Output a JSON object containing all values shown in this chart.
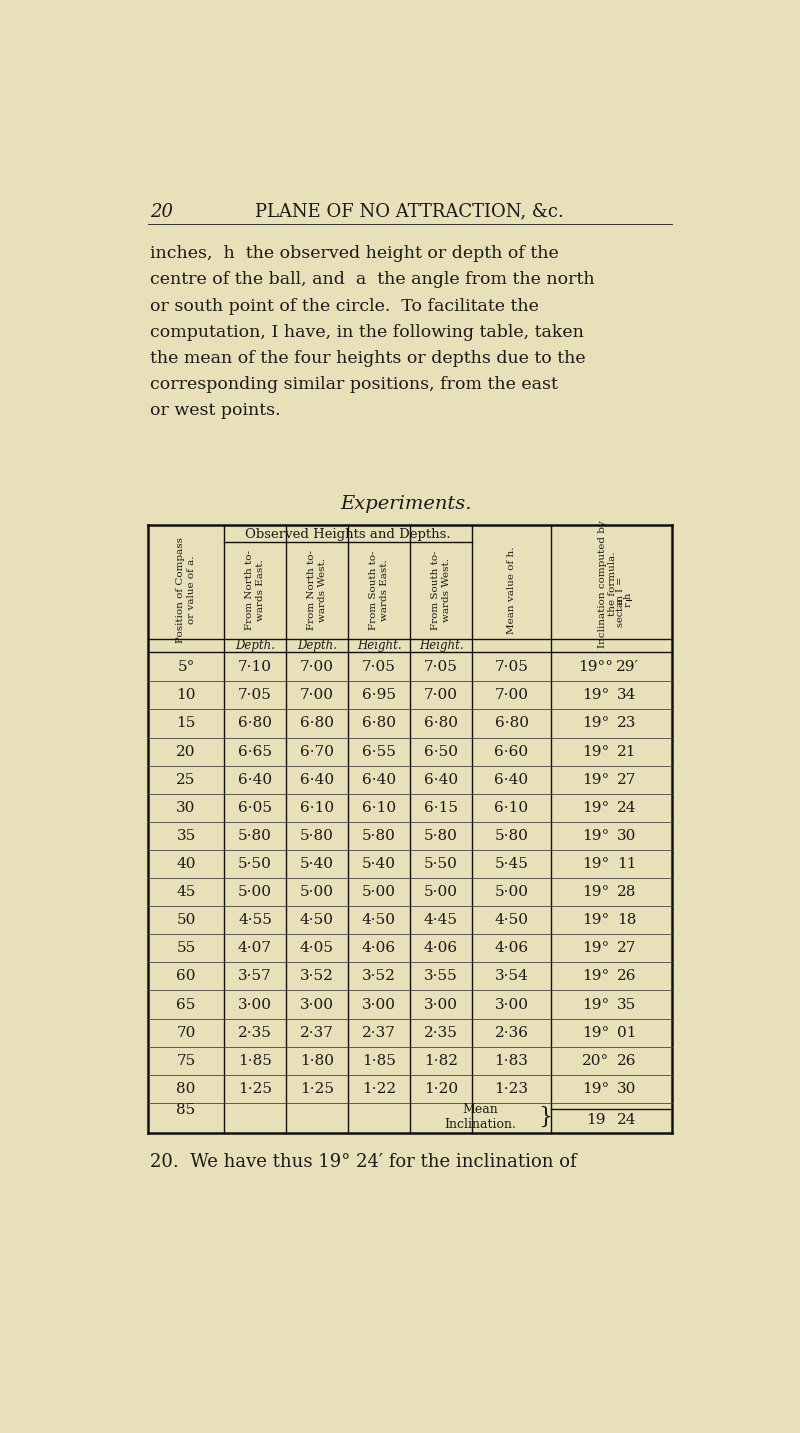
{
  "bg_color": "#e8e0b8",
  "page_num": "20",
  "page_header": "PLANE OF NO ATTRACTION, &c.",
  "para_lines": [
    "inches,  h  the observed height or depth of the",
    "centre of the ball, and  a  the angle from the north",
    "or south point of the circle.  To facilitate the",
    "computation, I have, in the following table, taken",
    "the mean of the four heights or depths due to the",
    "corresponding similar positions, from the east",
    "or west points."
  ],
  "table_title": "Experiments.",
  "col_header_span": "Observed Heights and Depths.",
  "col_headers_rotated": [
    "Position of Compass\nor value of a.",
    "From North to-\nwards East.",
    "From North to-\nwards West.",
    "From South to-\nwards East.",
    "From South to-\nwards West.",
    "Mean value of h.",
    "Inclination computed by\nthe formula."
  ],
  "subheads": [
    "Depth.",
    "Depth.",
    "Height.",
    "Height."
  ],
  "rows": [
    [
      "5°",
      "7·10",
      "7·00",
      "7·05",
      "7·05",
      "7·05",
      "19°",
      "29′"
    ],
    [
      "10",
      "7·05",
      "7·00",
      "6·95",
      "7·00",
      "7·00",
      "19",
      "34"
    ],
    [
      "15",
      "6·80",
      "6·80",
      "6·80",
      "6·80",
      "6·80",
      "19",
      "23"
    ],
    [
      "20",
      "6·65",
      "6·70",
      "6·55",
      "6·50",
      "6·60",
      "19",
      "21"
    ],
    [
      "25",
      "6·40",
      "6·40",
      "6·40",
      "6·40",
      "6·40",
      "19",
      "27"
    ],
    [
      "30",
      "6·05",
      "6·10",
      "6·10",
      "6·15",
      "6·10",
      "19",
      "24"
    ],
    [
      "35",
      "5·80",
      "5·80",
      "5·80",
      "5·80",
      "5·80",
      "19",
      "30"
    ],
    [
      "40",
      "5·50",
      "5·40",
      "5·40",
      "5·50",
      "5·45",
      "19",
      "11"
    ],
    [
      "45",
      "5·00",
      "5·00",
      "5·00",
      "5·00",
      "5·00",
      "19",
      "28"
    ],
    [
      "50",
      "4·55",
      "4·50",
      "4·50",
      "4·45",
      "4·50",
      "19",
      "18"
    ],
    [
      "55",
      "4·07",
      "4·05",
      "4·06",
      "4·06",
      "4·06",
      "19",
      "27"
    ],
    [
      "60",
      "3·57",
      "3·52",
      "3·52",
      "3·55",
      "3·54",
      "19",
      "26"
    ],
    [
      "65",
      "3·00",
      "3·00",
      "3·00",
      "3·00",
      "3·00",
      "19",
      "35"
    ],
    [
      "70",
      "2·35",
      "2·37",
      "2·37",
      "2·35",
      "2·36",
      "19",
      "01"
    ],
    [
      "75",
      "1·85",
      "1·80",
      "1·85",
      "1·82",
      "1·83",
      "20",
      "26"
    ],
    [
      "80",
      "1·25",
      "1·25",
      "1·22",
      "1·20",
      "1·23",
      "19",
      "30"
    ],
    [
      "85",
      "",
      "",
      "",
      "",
      "",
      "",
      ""
    ]
  ],
  "footer_deg": "19",
  "footer_min": "24",
  "bottom_text": "20.  We have thus 19° 24′ for the inclination of"
}
